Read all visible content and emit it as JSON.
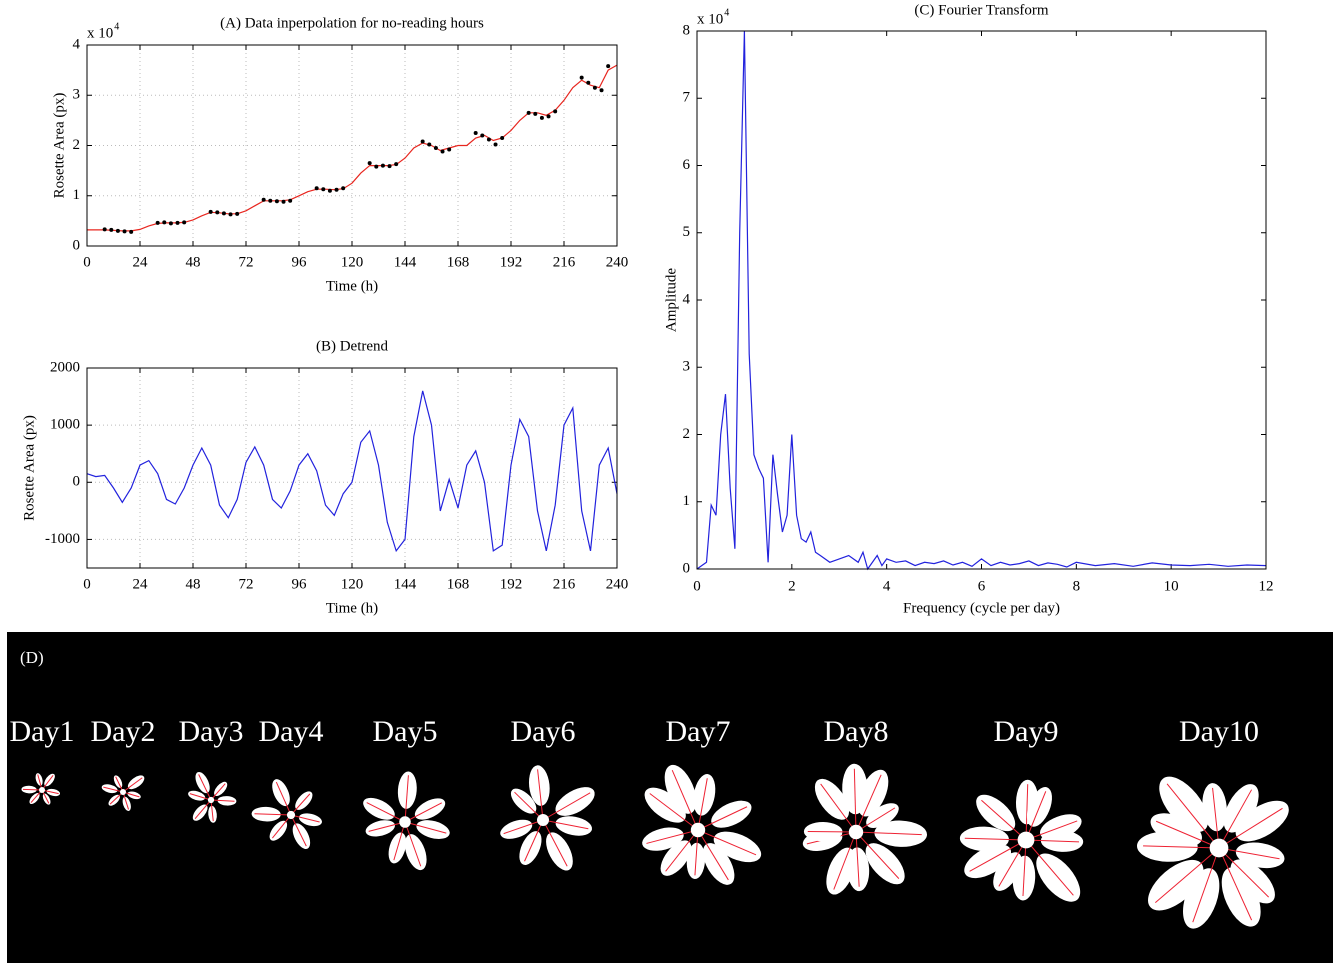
{
  "chart_data": [
    {
      "type": "line",
      "title": "(A)   Data inperpolation for no-reading hours",
      "x_label": "Time (h)",
      "y_label": "Rosette Area (px)",
      "y_multiplier": "x 10",
      "y_multiplier_exponent": "4",
      "xlim": [
        0,
        240
      ],
      "xticks": [
        0,
        24,
        48,
        72,
        96,
        120,
        144,
        168,
        192,
        216,
        240
      ],
      "ylim": [
        0,
        40000
      ],
      "yticks": [
        0,
        {
          "value": 10000,
          "label": "1"
        },
        {
          "value": 20000,
          "label": "2"
        },
        {
          "value": 30000,
          "label": "3"
        },
        {
          "value": 40000,
          "label": "4"
        }
      ],
      "grid": true,
      "series": [
        {
          "type": "line",
          "color": "#e8261f",
          "x": [
            0,
            4,
            8,
            12,
            16,
            20,
            24,
            28,
            32,
            36,
            40,
            44,
            48,
            52,
            56,
            60,
            64,
            68,
            72,
            76,
            80,
            84,
            88,
            92,
            96,
            100,
            104,
            108,
            112,
            116,
            120,
            124,
            128,
            132,
            136,
            140,
            144,
            148,
            152,
            156,
            160,
            164,
            168,
            172,
            176,
            180,
            184,
            188,
            192,
            196,
            200,
            204,
            208,
            212,
            216,
            220,
            224,
            228,
            232,
            236,
            240
          ],
          "values": [
            3200,
            3200,
            3200,
            3100,
            3000,
            3000,
            3300,
            4000,
            4500,
            4600,
            4600,
            4700,
            5200,
            6000,
            6700,
            6600,
            6400,
            6400,
            7000,
            8000,
            9000,
            9000,
            9000,
            9200,
            10000,
            10800,
            11300,
            11300,
            11200,
            11400,
            12500,
            14500,
            16000,
            16000,
            16000,
            16200,
            17500,
            19500,
            20500,
            20000,
            19000,
            19500,
            20000,
            20000,
            21500,
            22000,
            21000,
            21500,
            23000,
            25000,
            26500,
            26500,
            26000,
            27000,
            29000,
            31500,
            33000,
            32000,
            31500,
            35000,
            36000
          ]
        },
        {
          "type": "scatter",
          "color": "#000000",
          "x": [
            8,
            11,
            14,
            17,
            20,
            32,
            35,
            38,
            41,
            44,
            56,
            59,
            62,
            65,
            68,
            80,
            83,
            86,
            89,
            92,
            104,
            107,
            110,
            113,
            116,
            128,
            131,
            134,
            137,
            140,
            152,
            155,
            158,
            161,
            164,
            176,
            179,
            182,
            185,
            188,
            200,
            203,
            206,
            209,
            212,
            224,
            227,
            230,
            233,
            236
          ],
          "values": [
            3300,
            3200,
            3000,
            2900,
            2800,
            4600,
            4700,
            4500,
            4600,
            4700,
            6800,
            6700,
            6500,
            6300,
            6400,
            9200,
            9000,
            8900,
            8800,
            9000,
            11500,
            11300,
            11000,
            11200,
            11500,
            16500,
            15800,
            16000,
            15900,
            16300,
            20800,
            20200,
            19500,
            18800,
            19200,
            22500,
            22000,
            21200,
            20200,
            21500,
            26500,
            26300,
            25500,
            25800,
            26800,
            33500,
            32500,
            31500,
            31000,
            35800
          ]
        }
      ]
    },
    {
      "type": "line",
      "title": "(B)   Detrend",
      "x_label": "Time (h)",
      "y_label": "Rosette Area (px)",
      "xlim": [
        0,
        240
      ],
      "xticks": [
        0,
        24,
        48,
        72,
        96,
        120,
        144,
        168,
        192,
        216,
        240
      ],
      "ylim": [
        -1500,
        2000
      ],
      "yticks": [
        -1000,
        0,
        1000,
        2000
      ],
      "grid": true,
      "series": [
        {
          "type": "line",
          "color": "#2222dd",
          "x": [
            0,
            4,
            8,
            12,
            16,
            20,
            24,
            28,
            32,
            36,
            40,
            44,
            48,
            52,
            56,
            60,
            64,
            68,
            72,
            76,
            80,
            84,
            88,
            92,
            96,
            100,
            104,
            108,
            112,
            116,
            120,
            124,
            128,
            132,
            136,
            140,
            144,
            148,
            152,
            156,
            160,
            164,
            168,
            172,
            176,
            180,
            184,
            188,
            192,
            196,
            200,
            204,
            208,
            212,
            216,
            220,
            224,
            228,
            232,
            236,
            240
          ],
          "values": [
            150,
            100,
            120,
            -100,
            -350,
            -100,
            300,
            380,
            150,
            -300,
            -380,
            -100,
            300,
            600,
            300,
            -400,
            -620,
            -300,
            350,
            620,
            300,
            -300,
            -450,
            -150,
            300,
            500,
            200,
            -400,
            -580,
            -200,
            0,
            700,
            900,
            300,
            -700,
            -1200,
            -1000,
            800,
            1600,
            1000,
            -500,
            50,
            -450,
            300,
            550,
            0,
            -1200,
            -1100,
            300,
            1100,
            800,
            -500,
            -1200,
            -400,
            1000,
            1300,
            -500,
            -1200,
            300,
            600,
            -200
          ]
        }
      ]
    },
    {
      "type": "line",
      "title": "(C)   Fourier Transform",
      "x_label": "Frequency (cycle per day)",
      "y_label": "Amplitude",
      "y_multiplier": "x 10",
      "y_multiplier_exponent": "4",
      "xlim": [
        0,
        12
      ],
      "xticks": [
        0,
        2,
        4,
        6,
        8,
        10,
        12
      ],
      "ylim": [
        0,
        80000
      ],
      "yticks": [
        0,
        {
          "value": 10000,
          "label": "1"
        },
        {
          "value": 20000,
          "label": "2"
        },
        {
          "value": 30000,
          "label": "3"
        },
        {
          "value": 40000,
          "label": "4"
        },
        {
          "value": 50000,
          "label": "5"
        },
        {
          "value": 60000,
          "label": "6"
        },
        {
          "value": 70000,
          "label": "7"
        },
        {
          "value": 80000,
          "label": "8"
        }
      ],
      "grid": false,
      "series": [
        {
          "type": "line",
          "color": "#2222dd",
          "x": [
            0,
            0.1,
            0.2,
            0.3,
            0.4,
            0.5,
            0.6,
            0.7,
            0.8,
            0.9,
            1.0,
            1.1,
            1.2,
            1.3,
            1.4,
            1.5,
            1.6,
            1.7,
            1.8,
            1.9,
            2.0,
            2.1,
            2.2,
            2.3,
            2.4,
            2.5,
            2.6,
            2.8,
            3.0,
            3.2,
            3.4,
            3.5,
            3.6,
            3.8,
            3.9,
            4.0,
            4.2,
            4.4,
            4.6,
            4.8,
            5.0,
            5.2,
            5.4,
            5.6,
            5.8,
            6.0,
            6.2,
            6.4,
            6.6,
            6.8,
            7.0,
            7.2,
            7.4,
            7.6,
            7.8,
            8.0,
            8.4,
            8.8,
            9.2,
            9.6,
            10.0,
            10.4,
            10.8,
            11.2,
            11.6,
            12.0
          ],
          "values": [
            0,
            500,
            1000,
            9500,
            8000,
            20000,
            26000,
            12000,
            3000,
            50000,
            80000,
            32000,
            17000,
            15000,
            13500,
            1000,
            17000,
            11000,
            5500,
            8000,
            20000,
            8000,
            4500,
            4000,
            5500,
            2500,
            2000,
            1000,
            1500,
            2000,
            1000,
            2500,
            0,
            2000,
            500,
            1500,
            1000,
            1200,
            500,
            1000,
            800,
            1200,
            600,
            1000,
            400,
            1500,
            500,
            1000,
            600,
            800,
            1200,
            500,
            900,
            700,
            300,
            1000,
            500,
            800,
            400,
            900,
            600,
            500,
            700,
            400,
            600,
            500
          ]
        }
      ]
    }
  ],
  "panel_d": {
    "label": "(D)",
    "days": [
      "Day1",
      "Day2",
      "Day3",
      "Day4",
      "Day5",
      "Day6",
      "Day7",
      "Day8",
      "Day9",
      "Day10"
    ]
  }
}
